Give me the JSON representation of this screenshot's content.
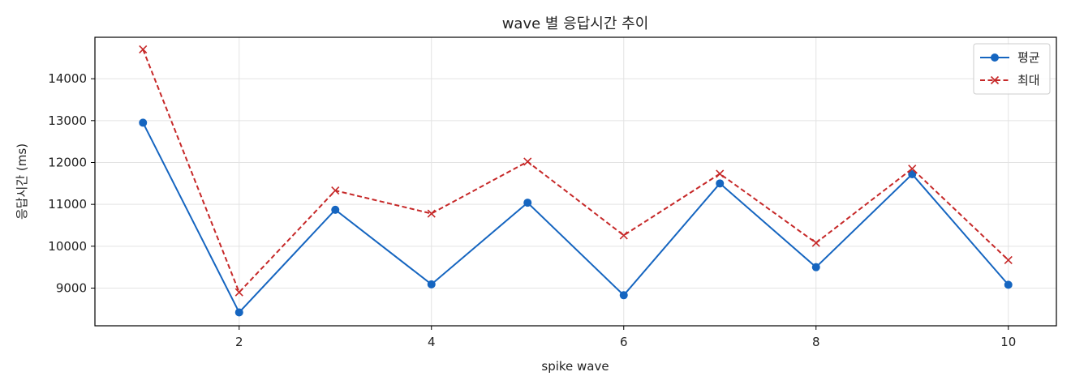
{
  "chart_data": {
    "type": "line",
    "title": "wave 별 응답시간 추이",
    "xlabel": "spike wave",
    "ylabel": "응답시간 (ms)",
    "x": [
      1,
      2,
      3,
      4,
      5,
      6,
      7,
      8,
      9,
      10
    ],
    "xlim": [
      0.5,
      10.5
    ],
    "ylim": [
      8100,
      14990
    ],
    "xticks": [
      2,
      4,
      6,
      8,
      10
    ],
    "yticks": [
      9000,
      10000,
      11000,
      12000,
      13000,
      14000
    ],
    "grid": true,
    "legend_position": "top-right",
    "series": [
      {
        "name": "평균",
        "color": "#1565c0",
        "line_style": "solid",
        "marker": "circle",
        "values": [
          12950,
          8420,
          10870,
          9090,
          11040,
          8830,
          11500,
          9500,
          11720,
          9080
        ]
      },
      {
        "name": "최대",
        "color": "#c62828",
        "line_style": "dashed",
        "marker": "x",
        "values": [
          14700,
          8900,
          11330,
          10780,
          12020,
          10260,
          11730,
          10080,
          11850,
          9670
        ]
      }
    ]
  }
}
